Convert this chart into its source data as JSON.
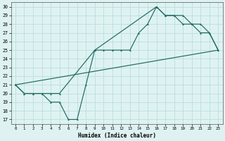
{
  "xlabel": "Humidex (Indice chaleur)",
  "bg_color": "#dff2f2",
  "line_color": "#1e6b5e",
  "grid_color": "#b8dede",
  "xlim": [
    -0.5,
    23.5
  ],
  "ylim": [
    16.5,
    30.5
  ],
  "xticks": [
    0,
    1,
    2,
    3,
    4,
    5,
    6,
    7,
    8,
    9,
    10,
    11,
    12,
    13,
    14,
    15,
    16,
    17,
    18,
    19,
    20,
    21,
    22,
    23
  ],
  "yticks": [
    17,
    18,
    19,
    20,
    21,
    22,
    23,
    24,
    25,
    26,
    27,
    28,
    29,
    30
  ],
  "line1_x": [
    0,
    1,
    2,
    3,
    4,
    5,
    6,
    7,
    8,
    9,
    10,
    11,
    12,
    13,
    14,
    15,
    16,
    17,
    18,
    19,
    20,
    21,
    22,
    23
  ],
  "line1_y": [
    21,
    20,
    20,
    20,
    19,
    19,
    17,
    17,
    21,
    25,
    25,
    25,
    25,
    25,
    27,
    28,
    30,
    29,
    29,
    28,
    28,
    27,
    27,
    25
  ],
  "line2_x": [
    0,
    23
  ],
  "line2_y": [
    21,
    25
  ],
  "line3_x": [
    0,
    1,
    2,
    3,
    4,
    5,
    9,
    16,
    17,
    18,
    19,
    20,
    21,
    22,
    23
  ],
  "line3_y": [
    21,
    20,
    20,
    20,
    20,
    20,
    25,
    30,
    29,
    29,
    29,
    28,
    28,
    27,
    25
  ]
}
